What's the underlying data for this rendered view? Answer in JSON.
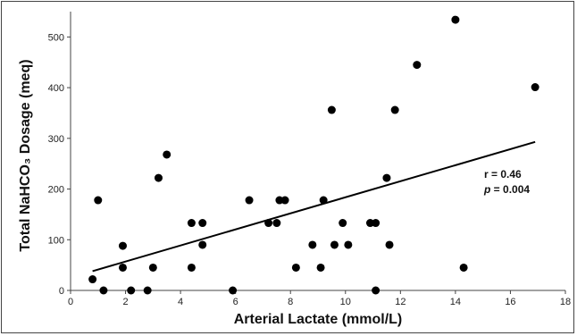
{
  "chart_data": {
    "type": "scatter",
    "xlabel": "Arterial Lactate (mmol/L)",
    "ylabel": "Total NaHCO₃ Dosage (meq)",
    "xlim": [
      0,
      18
    ],
    "ylim": [
      0,
      550
    ],
    "x_ticks": [
      "0",
      "2",
      "4",
      "6",
      "8",
      "10",
      "12",
      "14",
      "16",
      "18"
    ],
    "y_ticks": [
      "0",
      "100",
      "200",
      "300",
      "400",
      "500"
    ],
    "grid": false,
    "legend": "none",
    "marker_color": "#000000",
    "points": [
      {
        "x": 0.8,
        "y": 22
      },
      {
        "x": 1.0,
        "y": 178
      },
      {
        "x": 1.2,
        "y": 0
      },
      {
        "x": 1.9,
        "y": 88
      },
      {
        "x": 1.9,
        "y": 45
      },
      {
        "x": 2.2,
        "y": 0
      },
      {
        "x": 2.8,
        "y": 0
      },
      {
        "x": 3.0,
        "y": 45
      },
      {
        "x": 3.2,
        "y": 222
      },
      {
        "x": 3.5,
        "y": 268
      },
      {
        "x": 4.4,
        "y": 133
      },
      {
        "x": 4.4,
        "y": 45
      },
      {
        "x": 4.8,
        "y": 133
      },
      {
        "x": 4.8,
        "y": 90
      },
      {
        "x": 5.9,
        "y": 0
      },
      {
        "x": 6.5,
        "y": 178
      },
      {
        "x": 7.2,
        "y": 133
      },
      {
        "x": 7.5,
        "y": 133
      },
      {
        "x": 7.6,
        "y": 178
      },
      {
        "x": 7.8,
        "y": 178
      },
      {
        "x": 8.2,
        "y": 45
      },
      {
        "x": 8.8,
        "y": 90
      },
      {
        "x": 9.1,
        "y": 45
      },
      {
        "x": 9.2,
        "y": 178
      },
      {
        "x": 9.5,
        "y": 356
      },
      {
        "x": 9.6,
        "y": 90
      },
      {
        "x": 9.9,
        "y": 133
      },
      {
        "x": 10.1,
        "y": 90
      },
      {
        "x": 10.9,
        "y": 133
      },
      {
        "x": 11.1,
        "y": 133
      },
      {
        "x": 11.1,
        "y": 0
      },
      {
        "x": 11.5,
        "y": 222
      },
      {
        "x": 11.6,
        "y": 90
      },
      {
        "x": 11.8,
        "y": 356
      },
      {
        "x": 12.6,
        "y": 445
      },
      {
        "x": 14.0,
        "y": 534
      },
      {
        "x": 14.3,
        "y": 45
      },
      {
        "x": 16.9,
        "y": 401
      }
    ],
    "trendline": {
      "x": [
        0.8,
        16.9
      ],
      "y": [
        38,
        293
      ]
    },
    "annotation": {
      "r_text": "r = 0.46",
      "p_label": "p",
      "p_value": " = 0.004"
    }
  }
}
